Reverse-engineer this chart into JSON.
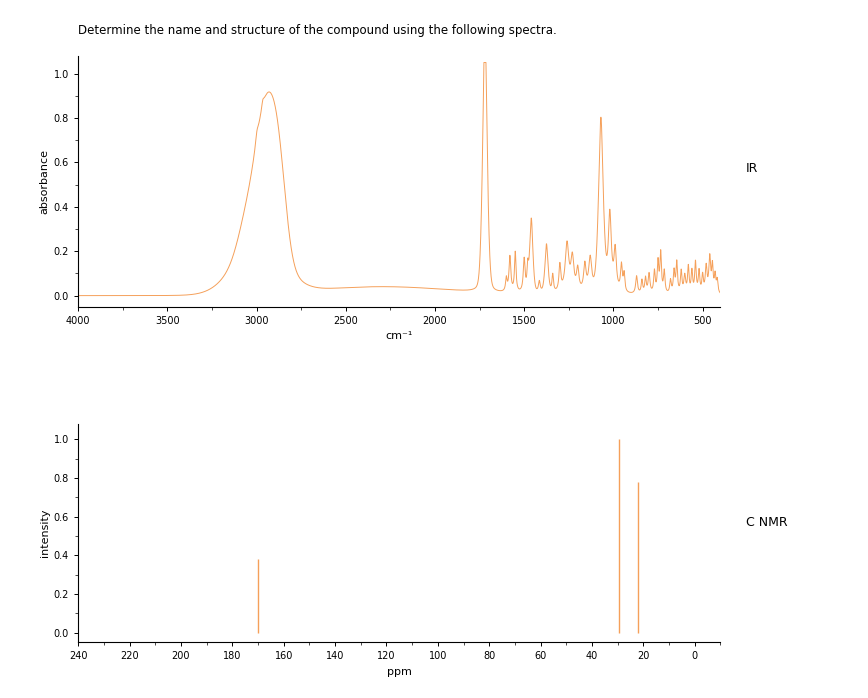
{
  "title": "Determine the name and structure of the compound using the following spectra.",
  "title_fontsize": 8.5,
  "line_color": "#F5A05A",
  "background_color": "#ffffff",
  "ir_xlabel": "cm⁻¹",
  "ir_ylabel": "absorbance",
  "ir_label": "IR",
  "ir_xlim": [
    4000,
    400
  ],
  "ir_ylim": [
    -0.05,
    1.08
  ],
  "ir_yticks": [
    0.0,
    0.2,
    0.4,
    0.6,
    0.8,
    1.0
  ],
  "ir_xticks": [
    4000,
    3500,
    3000,
    2500,
    2000,
    1500,
    1000,
    500
  ],
  "nmr_xlabel": "ppm",
  "nmr_ylabel": "intensity",
  "nmr_label": "C NMR",
  "nmr_xlim": [
    240,
    -10
  ],
  "nmr_ylim": [
    -0.05,
    1.08
  ],
  "nmr_yticks": [
    0.0,
    0.2,
    0.4,
    0.6,
    0.8,
    1.0
  ],
  "nmr_xticks": [
    240,
    220,
    200,
    180,
    160,
    140,
    120,
    100,
    80,
    60,
    40,
    20,
    0
  ],
  "nmr_peaks": [
    {
      "ppm": 170.0,
      "intensity": 0.38
    },
    {
      "ppm": 29.5,
      "intensity": 1.0
    },
    {
      "ppm": 22.0,
      "intensity": 0.78
    }
  ]
}
